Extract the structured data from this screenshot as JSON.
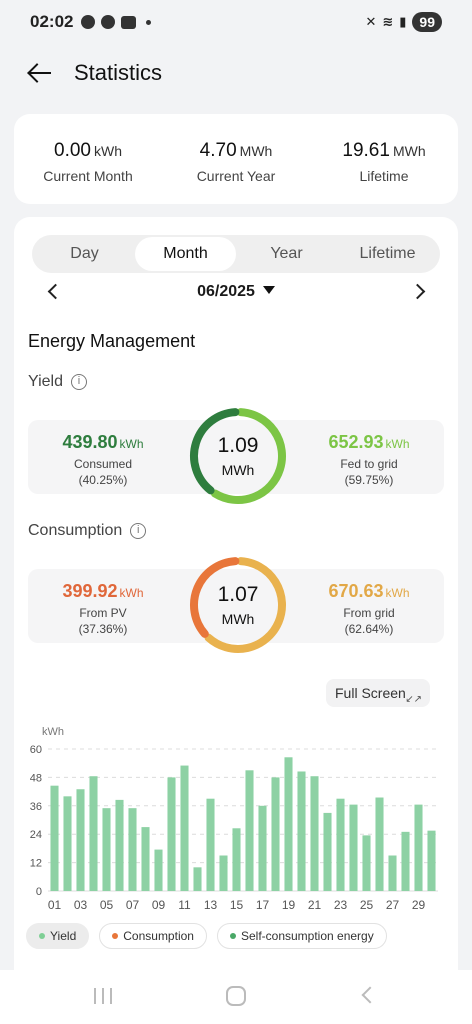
{
  "status_bar": {
    "time": "02:02",
    "battery": "99"
  },
  "header": {
    "title": "Statistics"
  },
  "summary": [
    {
      "value": "0.00",
      "unit": "kWh",
      "label": "Current Month"
    },
    {
      "value": "4.70",
      "unit": "MWh",
      "label": "Current Year"
    },
    {
      "value": "19.61",
      "unit": "MWh",
      "label": "Lifetime"
    }
  ],
  "tabs": [
    "Day",
    "Month",
    "Year",
    "Lifetime"
  ],
  "active_tab": "Month",
  "date": "06/2025",
  "energy_management": {
    "title": "Energy Management",
    "yield": {
      "title": "Yield",
      "total": "1.09",
      "total_unit": "MWh",
      "left": {
        "value": "439.80",
        "unit": "kWh",
        "label": "Consumed",
        "pct": "(40.25%)",
        "color": "#2e7d3e"
      },
      "right": {
        "value": "652.93",
        "unit": "kWh",
        "label": "Fed to grid",
        "pct": "(59.75%)",
        "color": "#7cc545"
      },
      "left_fraction": 0.4025
    },
    "consumption": {
      "title": "Consumption",
      "total": "1.07",
      "total_unit": "MWh",
      "left": {
        "value": "399.92",
        "unit": "kWh",
        "label": "From PV",
        "pct": "(37.36%)",
        "color": "#e8763a"
      },
      "right": {
        "value": "670.63",
        "unit": "kWh",
        "label": "From grid",
        "pct": "(62.64%)",
        "color": "#e9b24e"
      },
      "left_fraction": 0.3736
    }
  },
  "full_screen_label": "Full Screen",
  "chart_data": {
    "type": "bar",
    "ylabel": "kWh",
    "ylim": [
      0,
      60
    ],
    "yticks": [
      0,
      12,
      24,
      36,
      48,
      60
    ],
    "x": [
      "01",
      "02",
      "03",
      "04",
      "05",
      "06",
      "07",
      "08",
      "09",
      "10",
      "11",
      "12",
      "13",
      "14",
      "15",
      "16",
      "17",
      "18",
      "19",
      "20",
      "21",
      "22",
      "23",
      "24",
      "25",
      "26",
      "27",
      "28",
      "29",
      "30"
    ],
    "xtick_labels": [
      "01",
      "03",
      "05",
      "07",
      "09",
      "11",
      "13",
      "15",
      "17",
      "19",
      "21",
      "23",
      "25",
      "27",
      "29"
    ],
    "series": [
      {
        "name": "Yield",
        "color": "#8dd1a4",
        "values": [
          44.5,
          40,
          43,
          48.5,
          35,
          38.5,
          35,
          27,
          17.5,
          48,
          53,
          10,
          39,
          15,
          26.5,
          51,
          36,
          48,
          56.5,
          50.5,
          48.5,
          33,
          39,
          36.5,
          23.5,
          39.5,
          15,
          25,
          36.5,
          25.5
        ]
      }
    ]
  },
  "legend": [
    {
      "label": "Yield",
      "color": "#7fcf95",
      "active": true
    },
    {
      "label": "Consumption",
      "color": "#e8763a",
      "active": false
    },
    {
      "label": "Self-consumption energy",
      "color": "#4aa867",
      "active": false
    }
  ]
}
